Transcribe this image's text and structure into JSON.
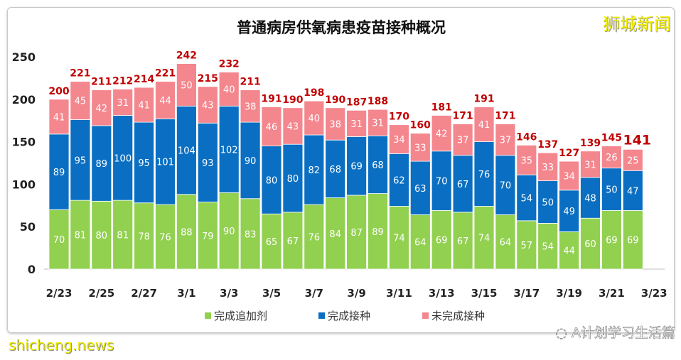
{
  "chart_data": {
    "type": "bar",
    "stacked": true,
    "title": "普通病房供氧病患疫苗接种概况",
    "categories": [
      "2/23",
      "2/24",
      "2/25",
      "2/26",
      "2/27",
      "2/28",
      "3/1",
      "3/2",
      "3/3",
      "3/4",
      "3/5",
      "3/6",
      "3/7",
      "3/8",
      "3/9",
      "3/10",
      "3/11",
      "3/12",
      "3/13",
      "3/14",
      "3/15",
      "3/16",
      "3/17",
      "3/18",
      "3/19",
      "3/20",
      "3/21",
      "3/22"
    ],
    "x_tick_labels": [
      "2/23",
      "2/25",
      "2/27",
      "3/1",
      "3/3",
      "3/5",
      "3/7",
      "3/9",
      "3/11",
      "3/13",
      "3/15",
      "3/17",
      "3/19",
      "3/21",
      "3/23"
    ],
    "y_tick_labels": [
      "0",
      "50",
      "100",
      "150",
      "200",
      "250"
    ],
    "ylim": [
      0,
      250
    ],
    "grid": false,
    "legend_position": "bottom",
    "series": [
      {
        "name": "完成追加剂",
        "color": "#92d050",
        "values": [
          70,
          81,
          80,
          81,
          78,
          76,
          88,
          79,
          90,
          83,
          65,
          67,
          76,
          84,
          87,
          89,
          74,
          64,
          69,
          67,
          74,
          64,
          57,
          54,
          44,
          60,
          69,
          69
        ]
      },
      {
        "name": "完成接种",
        "color": "#0a6fc2",
        "values": [
          89,
          95,
          89,
          100,
          95,
          101,
          104,
          93,
          102,
          90,
          80,
          80,
          82,
          68,
          69,
          68,
          62,
          63,
          70,
          67,
          76,
          70,
          54,
          50,
          49,
          48,
          50,
          47
        ]
      },
      {
        "name": "未完成接种",
        "color": "#f4868e",
        "values": [
          41,
          45,
          42,
          31,
          41,
          44,
          50,
          43,
          40,
          38,
          46,
          43,
          40,
          38,
          31,
          31,
          34,
          33,
          42,
          37,
          41,
          37,
          35,
          33,
          34,
          31,
          26,
          25
        ]
      }
    ],
    "totals": [
      200,
      221,
      211,
      212,
      214,
      221,
      242,
      215,
      232,
      211,
      191,
      190,
      198,
      190,
      187,
      188,
      170,
      160,
      181,
      171,
      191,
      171,
      146,
      137,
      127,
      139,
      145,
      141
    ],
    "total_label_color": "#c00000"
  },
  "watermarks": {
    "top_right": "狮城新闻",
    "bottom_left": "shicheng.news",
    "bottom_right": "A计划学习生活篇"
  }
}
